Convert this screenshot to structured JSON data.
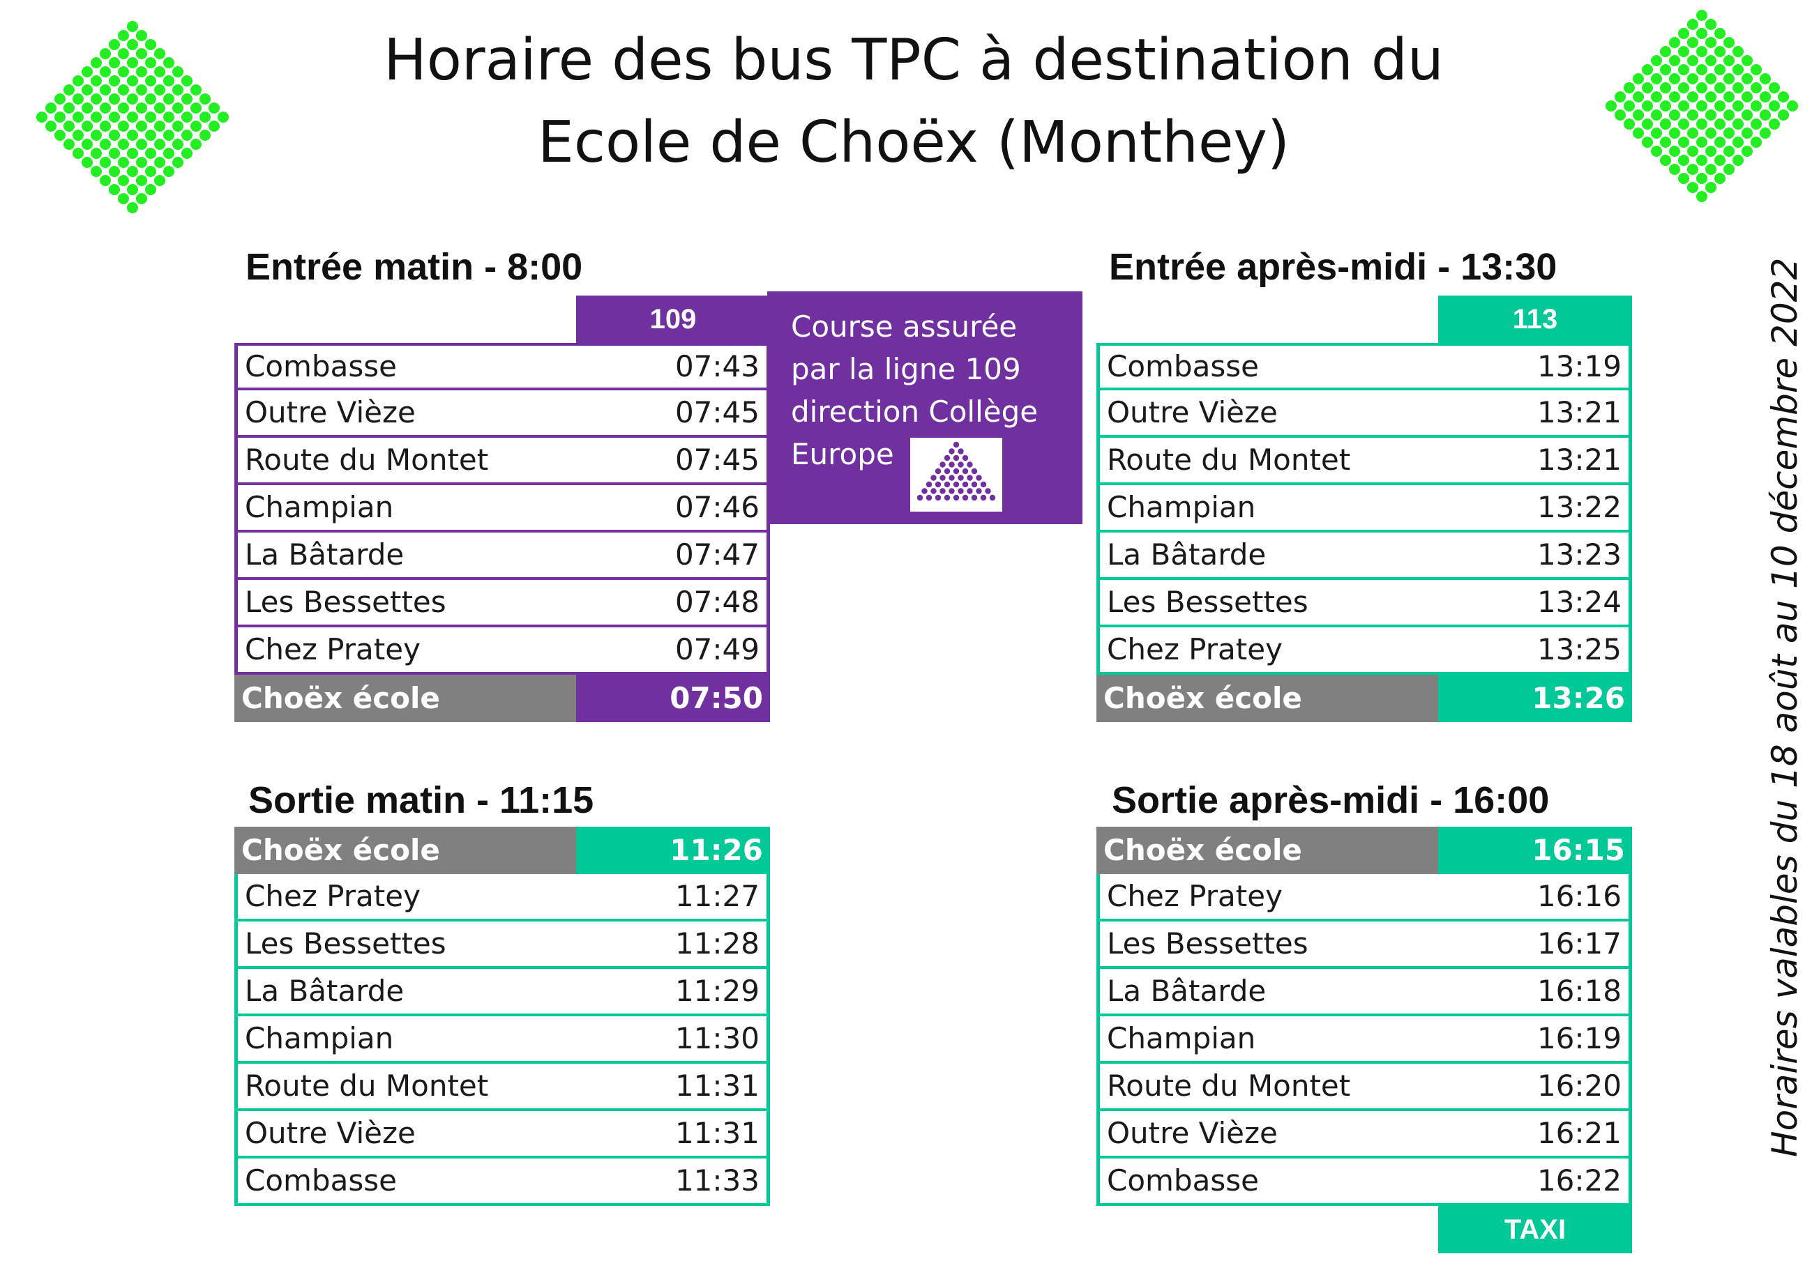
{
  "title": {
    "line1": "Horaire des bus TPC à destination du",
    "line2": "Ecole de Choëx (Monthey)"
  },
  "colors": {
    "purple": "#7030a0",
    "green": "#00c896",
    "grey": "#808080",
    "logo_green": "#22ee22"
  },
  "logos": [
    "bus-stop-diamond-icon",
    "bus-stop-diamond-icon"
  ],
  "validity": "Horaires valables du 18 août au 10 décembre 2022",
  "note": {
    "lines": [
      "Course assurée",
      "par la ligne 109",
      "direction Collège",
      "Europe"
    ],
    "icon": "triangle-dots-icon"
  },
  "sections": {
    "morning_in": {
      "title": "Entrée matin - 8:00",
      "line": "109",
      "rows": [
        {
          "stop": "Combasse",
          "time": "07:43"
        },
        {
          "stop": "Outre Vièze",
          "time": "07:45"
        },
        {
          "stop": "Route du Montet",
          "time": "07:45"
        },
        {
          "stop": "Champian",
          "time": "07:46"
        },
        {
          "stop": "La Bâtarde",
          "time": "07:47"
        },
        {
          "stop": "Les Bessettes",
          "time": "07:48"
        },
        {
          "stop": "Chez Pratey",
          "time": "07:49"
        }
      ],
      "school": {
        "stop": "Choëx école",
        "time": "07:50"
      }
    },
    "afternoon_in": {
      "title": "Entrée après-midi - 13:30",
      "line": "113",
      "rows": [
        {
          "stop": "Combasse",
          "time": "13:19"
        },
        {
          "stop": "Outre Vièze",
          "time": "13:21"
        },
        {
          "stop": "Route du Montet",
          "time": "13:21"
        },
        {
          "stop": "Champian",
          "time": "13:22"
        },
        {
          "stop": "La Bâtarde",
          "time": "13:23"
        },
        {
          "stop": "Les Bessettes",
          "time": "13:24"
        },
        {
          "stop": "Chez Pratey",
          "time": "13:25"
        }
      ],
      "school": {
        "stop": "Choëx école",
        "time": "13:26"
      }
    },
    "morning_out": {
      "title": "Sortie matin - 11:15",
      "school": {
        "stop": "Choëx école",
        "time": "11:26"
      },
      "rows": [
        {
          "stop": "Chez Pratey",
          "time": "11:27"
        },
        {
          "stop": "Les Bessettes",
          "time": "11:28"
        },
        {
          "stop": "La Bâtarde",
          "time": "11:29"
        },
        {
          "stop": "Champian",
          "time": "11:30"
        },
        {
          "stop": "Route du Montet",
          "time": "11:31"
        },
        {
          "stop": "Outre Vièze",
          "time": "11:31"
        },
        {
          "stop": "Combasse",
          "time": "11:33"
        }
      ]
    },
    "afternoon_out": {
      "title": "Sortie après-midi - 16:00",
      "school": {
        "stop": "Choëx école",
        "time": "16:15"
      },
      "rows": [
        {
          "stop": "Chez Pratey",
          "time": "16:16"
        },
        {
          "stop": "Les Bessettes",
          "time": "16:17"
        },
        {
          "stop": "La Bâtarde",
          "time": "16:18"
        },
        {
          "stop": "Champian",
          "time": "16:19"
        },
        {
          "stop": "Route du Montet",
          "time": "16:20"
        },
        {
          "stop": "Outre Vièze",
          "time": "16:21"
        },
        {
          "stop": "Combasse",
          "time": "16:22"
        }
      ],
      "footer": "TAXI"
    }
  }
}
